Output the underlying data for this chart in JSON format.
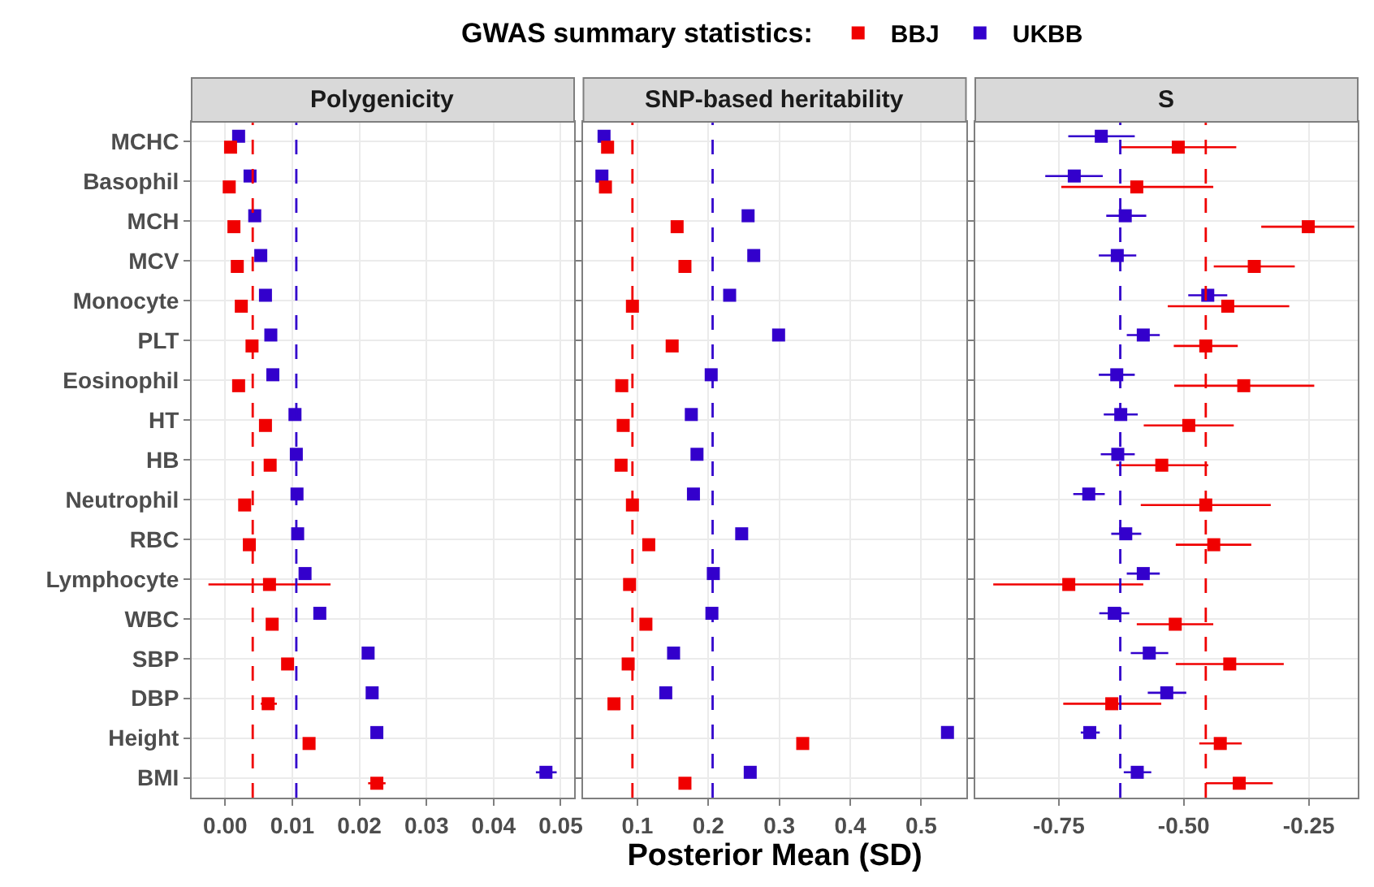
{
  "chart_data": [
    {
      "type": "scatter",
      "title": "Polygenicity",
      "orientation": "horizontal",
      "marker": "square",
      "grid": true,
      "legend": "top",
      "legend_title": "GWAS summary statistics:",
      "categories": [
        "MCHC",
        "Basophil",
        "MCH",
        "MCV",
        "Monocyte",
        "PLT",
        "Eosinophil",
        "HT",
        "HB",
        "Neutrophil",
        "RBC",
        "Lymphocyte",
        "WBC",
        "SBP",
        "DBP",
        "Height",
        "BMI"
      ],
      "xlim": [
        -0.005,
        0.052
      ],
      "xticks": [
        {
          "value": 0,
          "label": "0.00"
        },
        0.01,
        0.02,
        0.03,
        0.04,
        0.05
      ],
      "series": [
        {
          "name": "BBJ",
          "color": "#f00000",
          "values": [
            0.0008,
            0.0006,
            0.0013,
            0.0018,
            0.0024,
            0.004,
            0.002,
            0.006,
            0.0067,
            0.0029,
            0.0036,
            0.0066,
            0.007,
            0.0093,
            0.0064,
            0.0125,
            0.0226
          ],
          "errors": [
            null,
            null,
            null,
            null,
            null,
            null,
            null,
            null,
            null,
            null,
            null,
            [
              -0.0025,
              0.0157
            ],
            null,
            [
              0.0086,
              0.01
            ],
            [
              0.0053,
              0.0077
            ],
            null,
            [
              0.0213,
              0.0239
            ]
          ]
        },
        {
          "name": "UKBB",
          "color": "#3300cc",
          "values": [
            0.002,
            0.0037,
            0.0044,
            0.0053,
            0.006,
            0.0068,
            0.0071,
            0.0104,
            0.0106,
            0.0107,
            0.0108,
            0.0119,
            0.0141,
            0.0213,
            0.0219,
            0.0226,
            0.0478
          ],
          "errors": [
            null,
            null,
            null,
            null,
            null,
            null,
            null,
            null,
            null,
            null,
            null,
            null,
            null,
            [
              0.0206,
              0.022
            ],
            [
              0.0212,
              0.0227
            ],
            null,
            [
              0.0463,
              0.0494
            ]
          ]
        }
      ],
      "ref_lines": [
        {
          "axis": "x",
          "value": 0.0041,
          "color": "#f00000",
          "line_style": "dashed"
        },
        {
          "axis": "x",
          "value": 0.0106,
          "color": "#3300cc",
          "line_style": "dashed"
        }
      ]
    },
    {
      "type": "scatter",
      "title": "SNP-based heritability",
      "orientation": "horizontal",
      "marker": "square",
      "grid": true,
      "tick_labels": "x",
      "xlabel": "Posterior Mean (SD)",
      "categories": [
        "MCHC",
        "Basophil",
        "MCH",
        "MCV",
        "Monocyte",
        "PLT",
        "Eosinophil",
        "HT",
        "HB",
        "Neutrophil",
        "RBC",
        "Lymphocyte",
        "WBC",
        "SBP",
        "DBP",
        "Height",
        "BMI"
      ],
      "xlim": [
        0.024,
        0.563
      ],
      "xticks": [
        0.1,
        0.2,
        0.3,
        0.4,
        0.5
      ],
      "series": [
        {
          "color": "#f00000",
          "values": [
            0.058,
            0.055,
            0.156,
            0.167,
            0.093,
            0.149,
            0.078,
            0.08,
            0.077,
            0.093,
            0.116,
            0.089,
            0.112,
            0.087,
            0.067,
            0.333,
            0.167
          ]
        },
        {
          "color": "#3300cc",
          "values": [
            0.053,
            0.05,
            0.256,
            0.264,
            0.23,
            0.299,
            0.204,
            0.176,
            0.184,
            0.179,
            0.247,
            0.207,
            0.205,
            0.151,
            0.14,
            0.537,
            0.259
          ]
        }
      ],
      "ref_lines": [
        {
          "axis": "x",
          "value": 0.093,
          "color": "#f00000",
          "line_style": "dashed"
        },
        {
          "axis": "x",
          "value": 0.206,
          "color": "#3300cc",
          "line_style": "dashed"
        }
      ]
    },
    {
      "type": "scatter",
      "title": "S",
      "orientation": "horizontal",
      "marker": "square",
      "grid": true,
      "tick_labels": "x",
      "categories": [
        "MCHC",
        "Basophil",
        "MCH",
        "MCV",
        "Monocyte",
        "PLT",
        "Eosinophil",
        "HT",
        "HB",
        "Neutrophil",
        "RBC",
        "Lymphocyte",
        "WBC",
        "SBP",
        "DBP",
        "Height",
        "BMI"
      ],
      "xlim": [
        -0.917,
        -0.152
      ],
      "xticks": [
        -0.75,
        {
          "value": -0.5,
          "label": "-0.50"
        },
        -0.25
      ],
      "series": [
        {
          "color": "#f00000",
          "values": [
            -0.511,
            -0.594,
            -0.251,
            -0.359,
            -0.412,
            -0.456,
            -0.38,
            -0.49,
            -0.544,
            -0.456,
            -0.44,
            -0.73,
            -0.517,
            -0.408,
            -0.644,
            -0.427,
            -0.389
          ],
          "errors": [
            [
              -0.626,
              -0.395
            ],
            [
              -0.745,
              -0.441
            ],
            [
              -0.345,
              -0.159
            ],
            [
              -0.44,
              -0.278
            ],
            [
              -0.532,
              -0.289
            ],
            [
              -0.52,
              -0.392
            ],
            [
              -0.519,
              -0.239
            ],
            [
              -0.58,
              -0.4
            ],
            [
              -0.635,
              -0.451
            ],
            [
              -0.586,
              -0.326
            ],
            [
              -0.516,
              -0.365
            ],
            [
              -0.881,
              -0.581
            ],
            [
              -0.594,
              -0.441
            ],
            [
              -0.516,
              -0.3
            ],
            [
              -0.741,
              -0.545
            ],
            [
              -0.469,
              -0.384
            ],
            [
              -0.456,
              -0.322
            ]
          ]
        },
        {
          "color": "#3300cc",
          "values": [
            -0.665,
            -0.719,
            -0.617,
            -0.633,
            -0.452,
            -0.581,
            -0.634,
            -0.626,
            -0.632,
            -0.69,
            -0.616,
            -0.581,
            -0.639,
            -0.569,
            -0.534,
            -0.688,
            -0.593
          ],
          "errors": [
            [
              -0.731,
              -0.598
            ],
            [
              -0.777,
              -0.662
            ],
            [
              -0.655,
              -0.575
            ],
            [
              -0.67,
              -0.595
            ],
            [
              -0.491,
              -0.413
            ],
            [
              -0.614,
              -0.548
            ],
            [
              -0.67,
              -0.598
            ],
            [
              -0.66,
              -0.592
            ],
            [
              -0.666,
              -0.598
            ],
            [
              -0.721,
              -0.658
            ],
            [
              -0.645,
              -0.585
            ],
            [
              -0.614,
              -0.548
            ],
            [
              -0.669,
              -0.609
            ],
            [
              -0.606,
              -0.531
            ],
            [
              -0.572,
              -0.495
            ],
            [
              -0.706,
              -0.668
            ],
            [
              -0.62,
              -0.565
            ]
          ]
        }
      ],
      "ref_lines": [
        {
          "axis": "x",
          "value": -0.627,
          "color": "#3300cc",
          "line_style": "dashed"
        },
        {
          "axis": "x",
          "value": -0.456,
          "color": "#f00000",
          "line_style": "dashed"
        }
      ]
    }
  ]
}
